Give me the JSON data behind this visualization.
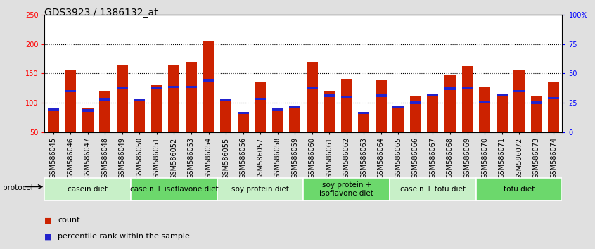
{
  "title": "GDS3923 / 1386132_at",
  "samples": [
    "GSM586045",
    "GSM586046",
    "GSM586047",
    "GSM586048",
    "GSM586049",
    "GSM586050",
    "GSM586051",
    "GSM586052",
    "GSM586053",
    "GSM586054",
    "GSM586055",
    "GSM586056",
    "GSM586057",
    "GSM586058",
    "GSM586059",
    "GSM586060",
    "GSM586061",
    "GSM586062",
    "GSM586063",
    "GSM586064",
    "GSM586065",
    "GSM586066",
    "GSM586067",
    "GSM586068",
    "GSM586069",
    "GSM586070",
    "GSM586071",
    "GSM586072",
    "GSM586073",
    "GSM586074"
  ],
  "count_values": [
    88,
    157,
    92,
    119,
    165,
    105,
    130,
    165,
    170,
    205,
    105,
    84,
    135,
    90,
    95,
    170,
    120,
    140,
    84,
    138,
    95,
    112,
    115,
    148,
    163,
    128,
    115,
    155,
    112,
    135
  ],
  "percentile_positions": [
    88,
    120,
    87,
    106,
    126,
    104,
    126,
    127,
    127,
    138,
    104,
    83,
    107,
    88,
    92,
    126,
    112,
    110,
    83,
    112,
    93,
    100,
    114,
    124,
    126,
    101,
    113,
    120,
    100,
    108
  ],
  "groups": [
    {
      "label": "casein diet",
      "start": 0,
      "end": 5
    },
    {
      "label": "casein + isoflavone diet",
      "start": 5,
      "end": 10
    },
    {
      "label": "soy protein diet",
      "start": 10,
      "end": 15
    },
    {
      "label": "soy protein +\nisoflavone diet",
      "start": 15,
      "end": 20
    },
    {
      "label": "casein + tofu diet",
      "start": 20,
      "end": 25
    },
    {
      "label": "tofu diet",
      "start": 25,
      "end": 30
    }
  ],
  "group_colors": [
    "#c8f0c8",
    "#6cd86c",
    "#c8f0c8",
    "#6cd86c",
    "#c8f0c8",
    "#6cd86c"
  ],
  "bar_color": "#cc2200",
  "percentile_color": "#2222cc",
  "ymin": 50,
  "ymax": 250,
  "yticks_left": [
    50,
    100,
    150,
    200,
    250
  ],
  "right_ytick_labels": [
    "0",
    "25",
    "50",
    "75",
    "100%"
  ],
  "legend_count_label": "count",
  "legend_percentile_label": "percentile rank within the sample",
  "protocol_label": "protocol",
  "fig_bg": "#e0e0e0",
  "plot_bg": "#ffffff",
  "title_fontsize": 10,
  "tick_fontsize": 7,
  "group_fontsize": 7.5,
  "legend_fontsize": 8
}
